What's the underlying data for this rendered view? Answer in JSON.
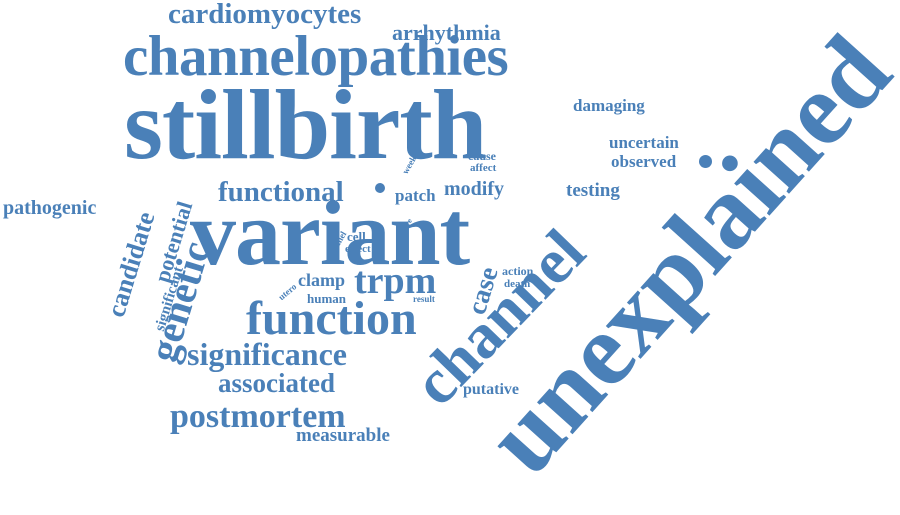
{
  "cloud": {
    "color": "#4a80b8",
    "words": {
      "unexplained": "unexplained",
      "stillbirth": "stillbirth",
      "variant": "variant",
      "channelopathies": "channelopathies",
      "channel": "channel",
      "function": "function",
      "trpm": "trpm",
      "significance": "significance",
      "associated": "associated",
      "postmortem": "postmortem",
      "genetic": "genetic",
      "functional": "functional",
      "cardiomyocytes": "cardiomyocytes",
      "arrhythmia": "arrhythmia",
      "candidate": "candidate",
      "potential": "potential",
      "significant": "significant",
      "pathogenic": "pathogenic",
      "measurable": "measurable",
      "putative": "putative",
      "case": "case",
      "damaging": "damaging",
      "uncertain": "uncertain",
      "observed": "observed",
      "testing": "testing",
      "modify": "modify",
      "patch": "patch",
      "clamp": "clamp",
      "human": "human",
      "action": "action",
      "death": "death",
      "result": "result",
      "cause": "cause",
      "affect": "affect",
      "cell": "cell",
      "effect": "effect",
      "week": "week",
      "panel": "panel",
      "rare": "rare",
      "utero": "utero"
    }
  }
}
